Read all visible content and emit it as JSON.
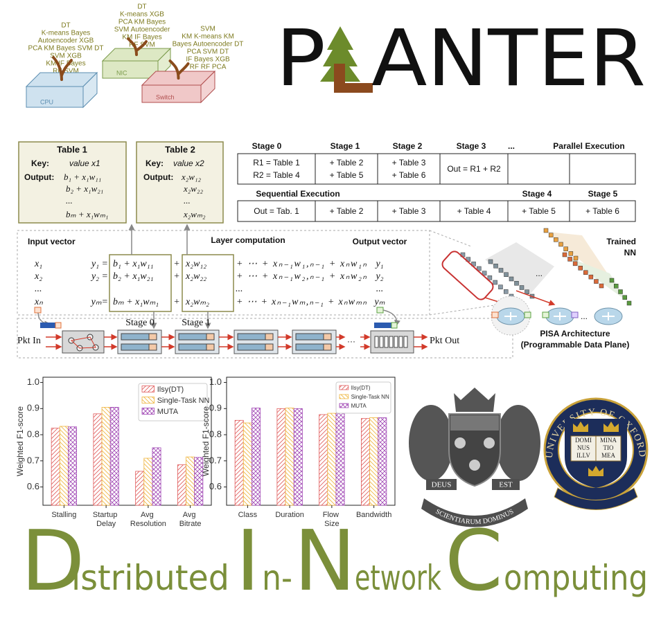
{
  "platforms": [
    {
      "label": "CPU",
      "algorithms": [
        "DT",
        "K-means Bayes",
        "Autoencoder XGB",
        "PCA KM Bayes SVM DT",
        "SVM XGB",
        "KM IF Bayes",
        "RF SVM"
      ]
    },
    {
      "label": "NIC",
      "algorithms": [
        "DT",
        "K-means XGB",
        "PCA KM Bayes",
        "SVM Autoencoder",
        "KM IF Bayes",
        "RF SVM"
      ]
    },
    {
      "label": "Switch",
      "algorithms": [
        "SVM",
        "KM K-means KM",
        "Bayes Autoencoder DT",
        "PCA SVM DT",
        "IF Bayes XGB",
        "RF RF PCA"
      ]
    }
  ],
  "title_parts": [
    "P",
    "L",
    "ANTER"
  ],
  "lookup_tables": [
    {
      "title": "Table 1",
      "key_label": "Key:",
      "key": "value x1",
      "output_label": "Output:",
      "outputs": [
        "b₁ + x₁w₁₁",
        "b₂ + x₁w₂₁",
        "...",
        "bₘ + x₁wₘ₁"
      ]
    },
    {
      "title": "Table 2",
      "key_label": "Key:",
      "key": "value x2",
      "output_label": "Output:",
      "outputs": [
        "x₂w₁₂",
        "x₂w₂₂",
        "...",
        "x₂wₘ₂"
      ]
    }
  ],
  "parallel": {
    "label": "Parallel Execution",
    "stages": [
      "Stage 0",
      "Stage 1",
      "Stage 2",
      "Stage 3",
      "..."
    ],
    "cells": [
      [
        "R1 = Table 1",
        "R2 = Table 4"
      ],
      [
        "+ Table 2",
        "+ Table 5"
      ],
      [
        "+ Table 3",
        "+ Table 6"
      ],
      [
        "Out = R1 + R2"
      ]
    ]
  },
  "sequential": {
    "label": "Sequential Execution",
    "stages": [
      "Stage 4",
      "Stage 5"
    ],
    "cells": [
      "Out = Tab. 1",
      "+ Table 2",
      "+ Table 3",
      "+ Table 4",
      "+ Table 5",
      "+ Table 6"
    ]
  },
  "layer": {
    "input_label": "Input vector",
    "title": "Layer computation",
    "output_label": "Output vector",
    "inputs": [
      "x₁",
      "x₂",
      "...",
      "xₙ"
    ],
    "outputs": [
      "y₁",
      "y₂",
      "...",
      "yₘ"
    ],
    "rows": [
      {
        "lhs": "y₁ =",
        "first": "b₁ + x₁w₁₁",
        "op": "+",
        "second": "x₂w₁₂",
        "rest": "+ ⋯ + xₙ₋₁w₁,ₙ₋₁ + xₙw₁ₙ"
      },
      {
        "lhs": "y₂ =",
        "first": "b₂ + x₁w₂₁",
        "op": "+",
        "second": "x₂w₂₂",
        "rest": "+ ⋯ + xₙ₋₁w₂,ₙ₋₁ + xₙw₂ₙ"
      },
      {
        "rest": "..."
      },
      {
        "lhs": "yₘ=",
        "first": "bₘ + x₁wₘ₁",
        "op": "+",
        "second": "x₂wₘ₂",
        "rest": "+ ⋯ + xₙ₋₁wₘ,ₙ₋₁ + xₙwₘₙ"
      }
    ]
  },
  "pipeline": {
    "input": "Pkt In",
    "output": "Pkt Out",
    "stages": [
      "Stage 0",
      "Stage 1"
    ],
    "ellipsis": "···"
  },
  "nn": {
    "label": [
      "Trained",
      "NN"
    ],
    "ellipsis": "...",
    "architecture": [
      "PISA Architecture",
      "(Programmable Data Plane)"
    ]
  },
  "charts": [
    {
      "type": "bar",
      "ylabel": "Weighted F1-score",
      "categories": [
        "Stalling",
        "Startup Delay",
        "Avg Resolution",
        "Avg Bitrate"
      ],
      "series": [
        {
          "name": "Ilsy(DT)",
          "color": "#e05a5a",
          "values": [
            0.825,
            0.88,
            0.66,
            0.685
          ]
        },
        {
          "name": "Single-Task NN",
          "color": "#efb43c",
          "values": [
            0.832,
            0.905,
            0.71,
            0.715
          ]
        },
        {
          "name": "MUTA",
          "color": "#a046b4",
          "values": [
            0.83,
            0.905,
            0.75,
            0.713
          ]
        }
      ],
      "ylim": [
        0.53,
        1.02
      ],
      "yticks": [
        0.6,
        0.7,
        0.8,
        0.9,
        {
          "value": 1,
          "label": "1.0"
        }
      ],
      "legend": "upper right"
    },
    {
      "type": "bar",
      "ylabel": "Weighted F1-score",
      "categories": [
        "Class",
        "Duration",
        "Flow Size",
        "Bandwidth"
      ],
      "series": [
        {
          "name": "Ilsy(DT)",
          "color": "#e05a5a",
          "values": [
            0.855,
            0.9,
            0.877,
            0.862
          ]
        },
        {
          "name": "Single-Task NN",
          "color": "#efb43c",
          "values": [
            0.845,
            0.902,
            0.882,
            0.865
          ]
        },
        {
          "name": "MUTA",
          "color": "#a046b4",
          "values": [
            0.902,
            0.9,
            0.882,
            0.865
          ]
        }
      ],
      "ylim": [
        0.53,
        1.02
      ],
      "yticks": [
        0.6,
        0.7,
        0.8,
        0.9,
        {
          "value": 1,
          "label": "1.0"
        }
      ],
      "legend": "upper right"
    }
  ],
  "logos": {
    "mcgill": {
      "motto_left": "DEUS",
      "motto_right": "EST",
      "scroll": "SCIENTIARUM DOMINUS"
    },
    "oxford": {
      "ring": "UNIVERSITY OF OXFORD",
      "book_left": [
        "DOMI",
        "NUS",
        "ILLV"
      ],
      "book_right": [
        "MINA",
        "TIO",
        "MEA"
      ]
    }
  },
  "tagline": [
    "D",
    "istributed",
    "I",
    "n-",
    "N",
    "etwork",
    "C",
    "omputing"
  ]
}
